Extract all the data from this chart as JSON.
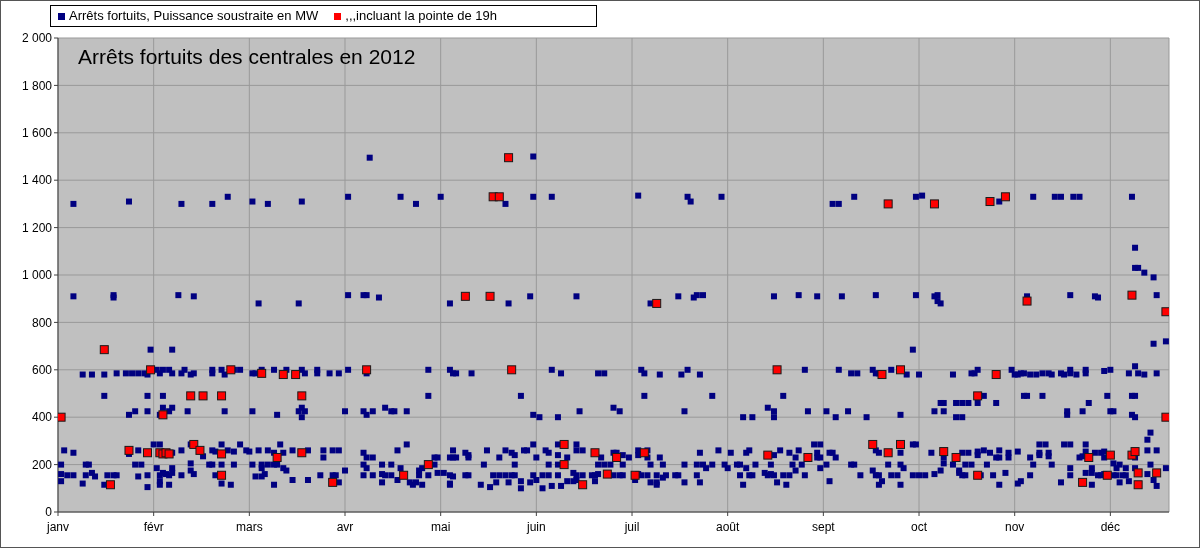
{
  "chart_data": {
    "type": "scatter",
    "title": "Arrêts fortuits des centrales en 2012",
    "legend": "top left",
    "grid": true,
    "marker": "square",
    "xlim": [
      "2012-01-01",
      "2012-12-26"
    ],
    "xticks": [
      {
        "value": "2012-01-01",
        "label": "janv"
      },
      {
        "value": "2012-02-01",
        "label": "févr"
      },
      {
        "value": "2012-03-03",
        "label": "mars"
      },
      {
        "value": "2012-04-03",
        "label": "avr"
      },
      {
        "value": "2012-05-04",
        "label": "mai"
      },
      {
        "value": "2012-06-04",
        "label": "juin"
      },
      {
        "value": "2012-07-05",
        "label": "juil"
      },
      {
        "value": "2012-08-05",
        "label": "août"
      },
      {
        "value": "2012-09-05",
        "label": "sept"
      },
      {
        "value": "2012-10-06",
        "label": "oct"
      },
      {
        "value": "2012-11-06",
        "label": "nov"
      },
      {
        "value": "2012-12-07",
        "label": "déc"
      }
    ],
    "ylim": [
      0,
      2000
    ],
    "yticks": [
      0,
      200,
      400,
      600,
      800,
      {
        "value": 1000,
        "label": "1 000"
      },
      {
        "value": 1200,
        "label": "1 200"
      },
      {
        "value": 1400,
        "label": "1 400"
      },
      {
        "value": 1600,
        "label": "1 600"
      },
      {
        "value": 1800,
        "label": "1 800"
      },
      {
        "value": 2000,
        "label": "2 000"
      }
    ],
    "series": [
      {
        "name": "Arrêts fortuits, Puissance soustraite en MW",
        "color": "#000080",
        "x": [
          "2012-01-06",
          "2012-01-24",
          "2012-02-10",
          "2012-02-20",
          "2012-02-25",
          "2012-01-06",
          "2012-01-19",
          "2012-01-19",
          "2012-02-09",
          "2012-02-14",
          "2012-01-31",
          "2012-02-07",
          "2012-01-09",
          "2012-01-12",
          "2012-01-16",
          "2012-01-20",
          "2012-01-23",
          "2012-01-25",
          "2012-01-27",
          "2012-01-29",
          "2012-01-30",
          "2012-02-02",
          "2012-02-03",
          "2012-02-04",
          "2012-02-06",
          "2012-02-07",
          "2012-02-10",
          "2012-02-11",
          "2012-02-13",
          "2012-02-14",
          "2012-02-20",
          "2012-02-20",
          "2012-02-23",
          "2012-02-24",
          "2012-02-27",
          "2012-02-29",
          "2012-01-16",
          "2012-01-30",
          "2012-02-04",
          "2012-02-24",
          "2012-02-12",
          "2012-01-30",
          "2012-01-26",
          "2012-01-24",
          "2012-02-04",
          "2012-02-07",
          "2012-02-06",
          "2012-02-03",
          "2012-01-03",
          "2012-01-06",
          "2012-01-24",
          "2012-01-27",
          "2012-02-01",
          "2012-02-03",
          "2012-02-07",
          "2012-02-10",
          "2012-02-13",
          "2012-02-17",
          "2012-02-20",
          "2012-02-21",
          "2012-02-25",
          "2012-02-27",
          "2012-02-23",
          "2012-02-29",
          "2012-01-02",
          "2012-01-10",
          "2012-01-11",
          "2012-01-26",
          "2012-01-28",
          "2012-02-02",
          "2012-02-07",
          "2012-02-13",
          "2012-02-19",
          "2012-02-20",
          "2012-02-23",
          "2012-02-27",
          "2012-01-02",
          "2012-01-04",
          "2012-01-06",
          "2012-01-10",
          "2012-01-12",
          "2012-01-13",
          "2012-01-17",
          "2012-01-19",
          "2012-01-20",
          "2012-01-27",
          "2012-01-30",
          "2012-02-03",
          "2012-02-04",
          "2012-02-05",
          "2012-02-06",
          "2012-02-07",
          "2012-02-10",
          "2012-02-13",
          "2012-02-14",
          "2012-02-21",
          "2012-01-02",
          "2012-01-09",
          "2012-01-16",
          "2012-01-30",
          "2012-02-03",
          "2012-02-03",
          "2012-02-06",
          "2012-02-23",
          "2012-02-26",
          "2012-04-11",
          "2012-03-04",
          "2012-03-09",
          "2012-03-20",
          "2012-04-04",
          "2012-04-21",
          "2012-04-26",
          "2012-03-06",
          "2012-03-19",
          "2012-04-04",
          "2012-04-09",
          "2012-04-10",
          "2012-04-14",
          "2012-03-04",
          "2012-03-05",
          "2012-03-07",
          "2012-03-11",
          "2012-03-15",
          "2012-03-20",
          "2012-03-21",
          "2012-03-25",
          "2012-03-25",
          "2012-03-29",
          "2012-04-01",
          "2012-04-04",
          "2012-04-10",
          "2012-04-30",
          "2012-04-30",
          "2012-03-04",
          "2012-03-12",
          "2012-03-19",
          "2012-03-20",
          "2012-03-21",
          "2012-03-20",
          "2012-04-03",
          "2012-04-09",
          "2012-04-10",
          "2012-04-12",
          "2012-04-16",
          "2012-04-18",
          "2012-04-19",
          "2012-04-23",
          "2012-03-02",
          "2012-03-03",
          "2012-03-06",
          "2012-03-09",
          "2012-03-13",
          "2012-03-11",
          "2012-03-14",
          "2012-03-17",
          "2012-03-22",
          "2012-03-27",
          "2012-03-27",
          "2012-03-30",
          "2012-04-01",
          "2012-04-09",
          "2012-04-10",
          "2012-04-12",
          "2012-04-20",
          "2012-04-23",
          "2012-03-04",
          "2012-03-07",
          "2012-03-09",
          "2012-03-11",
          "2012-03-12",
          "2012-03-07",
          "2012-03-14",
          "2012-03-15",
          "2012-04-09",
          "2012-04-10",
          "2012-04-15",
          "2012-04-18",
          "2012-04-21",
          "2012-04-27",
          "2012-04-28",
          "2012-03-05",
          "2012-03-07",
          "2012-03-08",
          "2012-03-17",
          "2012-03-22",
          "2012-03-26",
          "2012-03-30",
          "2012-03-31",
          "2012-04-03",
          "2012-04-09",
          "2012-04-12",
          "2012-04-15",
          "2012-04-16",
          "2012-04-18",
          "2012-04-20",
          "2012-04-24",
          "2012-04-25",
          "2012-04-26",
          "2012-04-27",
          "2012-04-28",
          "2012-04-30",
          "2012-03-11",
          "2012-04-01",
          "2012-04-15",
          "2012-06-03",
          "2012-05-04",
          "2012-05-25",
          "2012-06-03",
          "2012-06-09",
          "2012-05-07",
          "2012-05-26",
          "2012-06-02",
          "2012-06-17",
          "2012-05-07",
          "2012-05-08",
          "2012-05-09",
          "2012-05-14",
          "2012-06-09",
          "2012-06-12",
          "2012-06-24",
          "2012-06-26",
          "2012-05-30",
          "2012-06-03",
          "2012-06-05",
          "2012-06-11",
          "2012-06-18",
          "2012-06-29",
          "2012-07-01",
          "2012-05-02",
          "2012-05-03",
          "2012-05-07",
          "2012-05-08",
          "2012-05-08",
          "2012-05-09",
          "2012-05-12",
          "2012-05-13",
          "2012-05-13",
          "2012-05-19",
          "2012-05-23",
          "2012-05-25",
          "2012-05-27",
          "2012-05-28",
          "2012-05-31",
          "2012-06-01",
          "2012-06-03",
          "2012-06-04",
          "2012-06-07",
          "2012-06-08",
          "2012-06-11",
          "2012-06-11",
          "2012-06-14",
          "2012-06-17",
          "2012-06-17",
          "2012-06-19",
          "2012-06-25",
          "2012-06-29",
          "2012-06-30",
          "2012-05-02",
          "2012-05-18",
          "2012-05-28",
          "2012-06-08",
          "2012-06-11",
          "2012-06-24",
          "2012-06-26",
          "2012-06-28",
          "2012-05-03",
          "2012-05-05",
          "2012-05-07",
          "2012-05-08",
          "2012-05-12",
          "2012-05-13",
          "2012-05-21",
          "2012-05-22",
          "2012-05-23",
          "2012-05-25",
          "2012-05-27",
          "2012-05-28",
          "2012-05-26",
          "2012-05-30",
          "2012-06-02",
          "2012-06-03",
          "2012-06-04",
          "2012-06-06",
          "2012-06-08",
          "2012-06-11",
          "2012-06-16",
          "2012-06-17",
          "2012-06-14",
          "2012-06-16",
          "2012-06-17",
          "2012-06-19",
          "2012-06-22",
          "2012-06-23",
          "2012-06-24",
          "2012-06-29",
          "2012-07-01",
          "2012-06-23",
          "2012-05-07",
          "2012-05-07",
          "2012-05-17",
          "2012-05-20",
          "2012-05-30",
          "2012-06-06",
          "2012-06-09",
          "2012-06-12",
          "2012-07-07",
          "2012-07-23",
          "2012-07-24",
          "2012-08-03",
          "2012-07-11",
          "2012-07-20",
          "2012-07-25",
          "2012-07-26",
          "2012-07-28",
          "2012-08-20",
          "2012-08-28",
          "2012-07-08",
          "2012-07-09",
          "2012-07-14",
          "2012-07-21",
          "2012-07-23",
          "2012-07-27",
          "2012-08-30",
          "2012-07-09",
          "2012-07-31",
          "2012-08-23",
          "2012-07-22",
          "2012-08-10",
          "2012-08-13",
          "2012-08-18",
          "2012-08-20",
          "2012-08-20",
          "2012-08-31",
          "2012-07-02",
          "2012-07-04",
          "2012-07-07",
          "2012-07-07",
          "2012-07-10",
          "2012-07-10",
          "2012-07-14",
          "2012-07-27",
          "2012-08-02",
          "2012-08-06",
          "2012-08-11",
          "2012-08-12",
          "2012-08-20",
          "2012-08-22",
          "2012-08-25",
          "2012-08-27",
          "2012-08-28",
          "2012-07-02",
          "2012-07-11",
          "2012-07-15",
          "2012-07-22",
          "2012-07-26",
          "2012-07-28",
          "2012-07-31",
          "2012-07-29",
          "2012-08-05",
          "2012-08-04",
          "2012-08-08",
          "2012-08-09",
          "2012-08-11",
          "2012-08-14",
          "2012-08-19",
          "2012-08-26",
          "2012-08-29",
          "2012-08-27",
          "2012-07-02",
          "2012-07-06",
          "2012-07-07",
          "2012-07-08",
          "2012-07-10",
          "2012-07-13",
          "2012-07-15",
          "2012-07-16",
          "2012-07-19",
          "2012-07-20",
          "2012-07-11",
          "2012-07-13",
          "2012-07-13",
          "2012-07-22",
          "2012-07-26",
          "2012-07-27",
          "2012-08-09",
          "2012-08-12",
          "2012-08-13",
          "2012-08-10",
          "2012-08-17",
          "2012-08-18",
          "2012-08-19",
          "2012-08-20",
          "2012-08-23",
          "2012-08-25",
          "2012-08-21",
          "2012-08-24",
          "2012-08-30",
          "2012-09-08",
          "2012-09-10",
          "2012-09-15",
          "2012-10-05",
          "2012-10-07",
          "2012-09-03",
          "2012-09-11",
          "2012-09-22",
          "2012-10-05",
          "2012-10-11",
          "2012-10-12",
          "2012-10-12",
          "2012-10-13",
          "2012-10-04",
          "2012-09-10",
          "2012-09-14",
          "2012-09-16",
          "2012-09-21",
          "2012-09-22",
          "2012-09-23",
          "2012-09-27",
          "2012-10-02",
          "2012-10-06",
          "2012-10-17",
          "2012-10-23",
          "2012-10-24",
          "2012-10-25",
          "2012-10-27",
          "2012-09-06",
          "2012-09-09",
          "2012-09-13",
          "2012-09-19",
          "2012-09-30",
          "2012-10-11",
          "2012-10-14",
          "2012-10-13",
          "2012-10-14",
          "2012-10-18",
          "2012-10-20",
          "2012-10-22",
          "2012-10-18",
          "2012-10-20",
          "2012-10-25",
          "2012-10-31",
          "2012-09-02",
          "2012-09-04",
          "2012-09-03",
          "2012-09-04",
          "2012-09-03",
          "2012-09-07",
          "2012-09-08",
          "2012-09-09",
          "2012-09-22",
          "2012-09-23",
          "2012-09-30",
          "2012-10-04",
          "2012-10-05",
          "2012-10-10",
          "2012-10-14",
          "2012-10-20",
          "2012-10-22",
          "2012-10-25",
          "2012-10-25",
          "2012-10-27",
          "2012-10-29",
          "2012-10-31",
          "2012-11-01",
          "2012-09-06",
          "2012-09-04",
          "2012-09-14",
          "2012-09-15",
          "2012-09-26",
          "2012-09-30",
          "2012-10-01",
          "2012-09-21",
          "2012-10-14",
          "2012-10-17",
          "2012-10-21",
          "2012-10-23",
          "2012-10-28",
          "2012-10-13",
          "2012-10-19",
          "2012-09-07",
          "2012-09-17",
          "2012-09-22",
          "2012-09-23",
          "2012-09-27",
          "2012-09-29",
          "2012-09-23",
          "2012-09-24",
          "2012-09-30",
          "2012-10-04",
          "2012-10-06",
          "2012-10-08",
          "2012-10-11",
          "2012-10-19",
          "2012-10-20",
          "2012-10-21",
          "2012-10-26",
          "2012-10-30",
          "2012-11-01",
          "2012-11-01",
          "2012-11-12",
          "2012-11-19",
          "2012-11-21",
          "2012-11-25",
          "2012-11-27",
          "2012-12-14",
          "2012-12-15",
          "2012-12-15",
          "2012-12-16",
          "2012-12-18",
          "2012-12-21",
          "2012-11-10",
          "2012-11-24",
          "2012-12-02",
          "2012-12-03",
          "2012-12-22",
          "2012-12-21",
          "2012-12-25",
          "2012-12-15",
          "2012-11-05",
          "2012-11-06",
          "2012-11-07",
          "2012-11-08",
          "2012-11-09",
          "2012-11-11",
          "2012-11-13",
          "2012-11-15",
          "2012-11-17",
          "2012-11-18",
          "2012-11-21",
          "2012-11-22",
          "2012-11-24",
          "2012-11-24",
          "2012-11-26",
          "2012-11-29",
          "2012-11-29",
          "2012-12-05",
          "2012-12-07",
          "2012-12-13",
          "2012-12-16",
          "2012-12-18",
          "2012-12-22",
          "2012-11-09",
          "2012-11-10",
          "2012-11-15",
          "2012-12-06",
          "2012-12-14",
          "2012-12-15",
          "2012-11-23",
          "2012-11-23",
          "2012-11-28",
          "2012-12-07",
          "2012-12-08",
          "2012-12-14",
          "2012-12-15",
          "2012-11-30",
          "2012-11-04",
          "2012-11-07",
          "2012-11-01",
          "2012-11-04",
          "2012-11-11",
          "2012-11-14",
          "2012-11-14",
          "2012-11-17",
          "2012-11-17",
          "2012-11-14",
          "2012-11-16",
          "2012-11-22",
          "2012-11-24",
          "2012-11-27",
          "2012-11-28",
          "2012-11-29",
          "2012-11-29",
          "2012-12-02",
          "2012-12-04",
          "2012-12-05",
          "2012-12-05",
          "2012-12-15",
          "2012-12-19",
          "2012-12-20",
          "2012-12-19",
          "2012-12-22",
          "2012-11-12",
          "2012-11-18",
          "2012-12-08",
          "2012-12-10",
          "2012-12-20",
          "2012-12-01",
          "2012-11-24",
          "2012-12-12",
          "2012-12-15",
          "2012-12-25",
          "2012-12-09",
          "2012-11-03",
          "2012-11-11",
          "2012-11-07",
          "2012-11-08",
          "2012-11-21",
          "2012-11-24",
          "2012-11-29",
          "2012-12-01",
          "2012-12-01",
          "2012-12-03",
          "2012-12-04",
          "2012-12-05",
          "2012-12-08",
          "2012-12-09",
          "2012-12-11",
          "2012-12-12",
          "2012-12-10",
          "2012-12-13",
          "2012-12-19",
          "2012-12-21",
          "2012-12-22"
        ],
        "values": [
          1300,
          1310,
          1300,
          1300,
          1330,
          910,
          905,
          915,
          915,
          910,
          685,
          685,
          580,
          580,
          580,
          585,
          585,
          585,
          585,
          585,
          580,
          600,
          585,
          600,
          600,
          585,
          585,
          600,
          580,
          585,
          600,
          585,
          600,
          580,
          600,
          600,
          490,
          490,
          490,
          425,
          425,
          425,
          425,
          410,
          440,
          440,
          425,
          410,
          260,
          250,
          245,
          260,
          285,
          285,
          250,
          260,
          285,
          235,
          260,
          255,
          260,
          255,
          285,
          285,
          200,
          200,
          200,
          200,
          200,
          185,
          185,
          205,
          200,
          200,
          200,
          200,
          160,
          155,
          155,
          155,
          165,
          150,
          155,
          155,
          155,
          150,
          155,
          155,
          165,
          160,
          155,
          165,
          155,
          175,
          160,
          155,
          130,
          120,
          115,
          105,
          130,
          115,
          115,
          120,
          115,
          1495,
          1310,
          1300,
          1310,
          1330,
          1330,
          1300,
          880,
          880,
          915,
          915,
          915,
          905,
          585,
          585,
          600,
          600,
          600,
          600,
          585,
          600,
          585,
          585,
          585,
          600,
          585,
          600,
          490,
          425,
          410,
          425,
          440,
          425,
          400,
          425,
          425,
          410,
          425,
          440,
          425,
          425,
          425,
          260,
          255,
          260,
          260,
          285,
          250,
          250,
          260,
          260,
          260,
          230,
          260,
          260,
          250,
          230,
          230,
          260,
          285,
          200,
          200,
          200,
          200,
          200,
          185,
          185,
          175,
          200,
          185,
          200,
          200,
          185,
          175,
          185,
          150,
          150,
          160,
          135,
          135,
          155,
          155,
          155,
          175,
          155,
          155,
          160,
          155,
          155,
          135,
          125,
          115,
          125,
          155,
          115,
          155,
          115,
          125,
          125,
          1500,
          1330,
          1300,
          1330,
          1330,
          880,
          880,
          910,
          910,
          600,
          585,
          585,
          585,
          600,
          585,
          585,
          585,
          490,
          410,
          400,
          400,
          425,
          440,
          425,
          230,
          230,
          230,
          230,
          260,
          230,
          250,
          240,
          230,
          260,
          230,
          260,
          250,
          240,
          260,
          260,
          285,
          230,
          260,
          250,
          240,
          285,
          230,
          285,
          260,
          260,
          230,
          250,
          250,
          200,
          200,
          200,
          200,
          200,
          200,
          200,
          200,
          165,
          165,
          155,
          150,
          155,
          155,
          155,
          125,
          155,
          155,
          155,
          155,
          125,
          130,
          125,
          155,
          135,
          155,
          155,
          155,
          165,
          155,
          130,
          130,
          135,
          155,
          155,
          155,
          160,
          155,
          155,
          130,
          120,
          115,
          115,
          105,
          100,
          100,
          110,
          110,
          1335,
          1330,
          1310,
          1330,
          880,
          910,
          905,
          915,
          915,
          910,
          915,
          600,
          585,
          580,
          580,
          600,
          580,
          600,
          490,
          490,
          490,
          425,
          400,
          400,
          440,
          425,
          400,
          425,
          240,
          230,
          240,
          260,
          260,
          230,
          230,
          250,
          260,
          250,
          250,
          260,
          240,
          260,
          250,
          230,
          260,
          200,
          200,
          200,
          200,
          200,
          200,
          200,
          185,
          185,
          200,
          200,
          200,
          185,
          200,
          200,
          200,
          200,
          175,
          155,
          135,
          160,
          155,
          155,
          155,
          145,
          155,
          155,
          155,
          125,
          125,
          115,
          125,
          155,
          125,
          155,
          155,
          155,
          115,
          165,
          155,
          160,
          155,
          155,
          155,
          125,
          115,
          155,
          1300,
          1300,
          1330,
          1330,
          1335,
          910,
          910,
          915,
          915,
          910,
          915,
          890,
          880,
          685,
          600,
          585,
          585,
          600,
          585,
          585,
          600,
          580,
          580,
          580,
          585,
          585,
          600,
          490,
          425,
          400,
          425,
          400,
          410,
          425,
          425,
          460,
          460,
          460,
          460,
          460,
          400,
          400,
          460,
          460,
          285,
          285,
          230,
          230,
          250,
          250,
          250,
          230,
          260,
          250,
          250,
          285,
          285,
          250,
          230,
          250,
          250,
          255,
          240,
          260,
          250,
          230,
          260,
          200,
          185,
          200,
          200,
          200,
          200,
          185,
          175,
          205,
          200,
          200,
          200,
          200,
          175,
          175,
          130,
          155,
          155,
          155,
          155,
          155,
          115,
          130,
          115,
          155,
          155,
          155,
          160,
          165,
          155,
          155,
          155,
          155,
          115,
          1310,
          1330,
          1330,
          1330,
          1330,
          1330,
          1330,
          1115,
          1030,
          1030,
          1010,
          990,
          910,
          915,
          910,
          905,
          915,
          710,
          720,
          615,
          600,
          580,
          580,
          585,
          585,
          580,
          580,
          585,
          585,
          580,
          585,
          580,
          585,
          600,
          580,
          600,
          585,
          595,
          600,
          585,
          585,
          580,
          585,
          490,
          490,
          490,
          490,
          490,
          490,
          425,
          410,
          425,
          425,
          425,
          410,
          400,
          460,
          250,
          255,
          230,
          230,
          230,
          250,
          240,
          250,
          235,
          285,
          285,
          285,
          285,
          230,
          235,
          285,
          255,
          250,
          250,
          255,
          230,
          230,
          305,
          335,
          260,
          260,
          200,
          200,
          205,
          200,
          200,
          185,
          185,
          185,
          185,
          185,
          185,
          165,
          155,
          120,
          130,
          125,
          155,
          165,
          165,
          115,
          155,
          155,
          160,
          155,
          155,
          155,
          155,
          125,
          130,
          160,
          135,
          110
        ]
      },
      {
        "name": ",,,incluant la pointe de 19h",
        "color": "#ff0000",
        "x": [
          "2012-01-02",
          "2012-01-16",
          "2012-01-18",
          "2012-01-24",
          "2012-01-30",
          "2012-01-31",
          "2012-02-03",
          "2012-02-04",
          "2012-02-05",
          "2012-02-06",
          "2012-02-04",
          "2012-02-13",
          "2012-02-14",
          "2012-02-16",
          "2012-02-17",
          "2012-02-23",
          "2012-02-23",
          "2012-02-23",
          "2012-02-26",
          "2012-03-07",
          "2012-03-12",
          "2012-03-14",
          "2012-03-18",
          "2012-03-20",
          "2012-03-20",
          "2012-03-30",
          "2012-04-10",
          "2012-04-22",
          "2012-04-30",
          "2012-05-12",
          "2012-05-20",
          "2012-05-21",
          "2012-05-23",
          "2012-05-26",
          "2012-05-27",
          "2012-06-13",
          "2012-06-13",
          "2012-06-19",
          "2012-06-23",
          "2012-06-27",
          "2012-06-30",
          "2012-07-06",
          "2012-07-09",
          "2012-07-13",
          "2012-08-18",
          "2012-08-21",
          "2012-08-31",
          "2012-09-21",
          "2012-09-24",
          "2012-09-26",
          "2012-09-26",
          "2012-09-30",
          "2012-09-30",
          "2012-10-11",
          "2012-10-14",
          "2012-10-18",
          "2012-10-25",
          "2012-10-25",
          "2012-10-29",
          "2012-10-31",
          "2012-11-03",
          "2012-11-10",
          "2012-11-28",
          "2012-11-30",
          "2012-12-06",
          "2012-12-07",
          "2012-12-14",
          "2012-12-14",
          "2012-12-15",
          "2012-12-16",
          "2012-12-16",
          "2012-12-22",
          "2012-12-25",
          "2012-12-25"
        ],
        "values": [
          400,
          685,
          115,
          260,
          250,
          600,
          250,
          245,
          250,
          245,
          410,
          490,
          285,
          260,
          490,
          490,
          245,
          155,
          600,
          585,
          230,
          580,
          580,
          490,
          250,
          125,
          600,
          155,
          200,
          910,
          910,
          1330,
          1330,
          1495,
          600,
          285,
          200,
          115,
          250,
          160,
          230,
          155,
          250,
          880,
          240,
          600,
          230,
          285,
          580,
          1300,
          250,
          600,
          285,
          1300,
          255,
          230,
          490,
          155,
          1310,
          580,
          1330,
          890,
          125,
          230,
          155,
          240,
          915,
          240,
          255,
          165,
          115,
          165,
          845,
          400
        ]
      }
    ]
  }
}
